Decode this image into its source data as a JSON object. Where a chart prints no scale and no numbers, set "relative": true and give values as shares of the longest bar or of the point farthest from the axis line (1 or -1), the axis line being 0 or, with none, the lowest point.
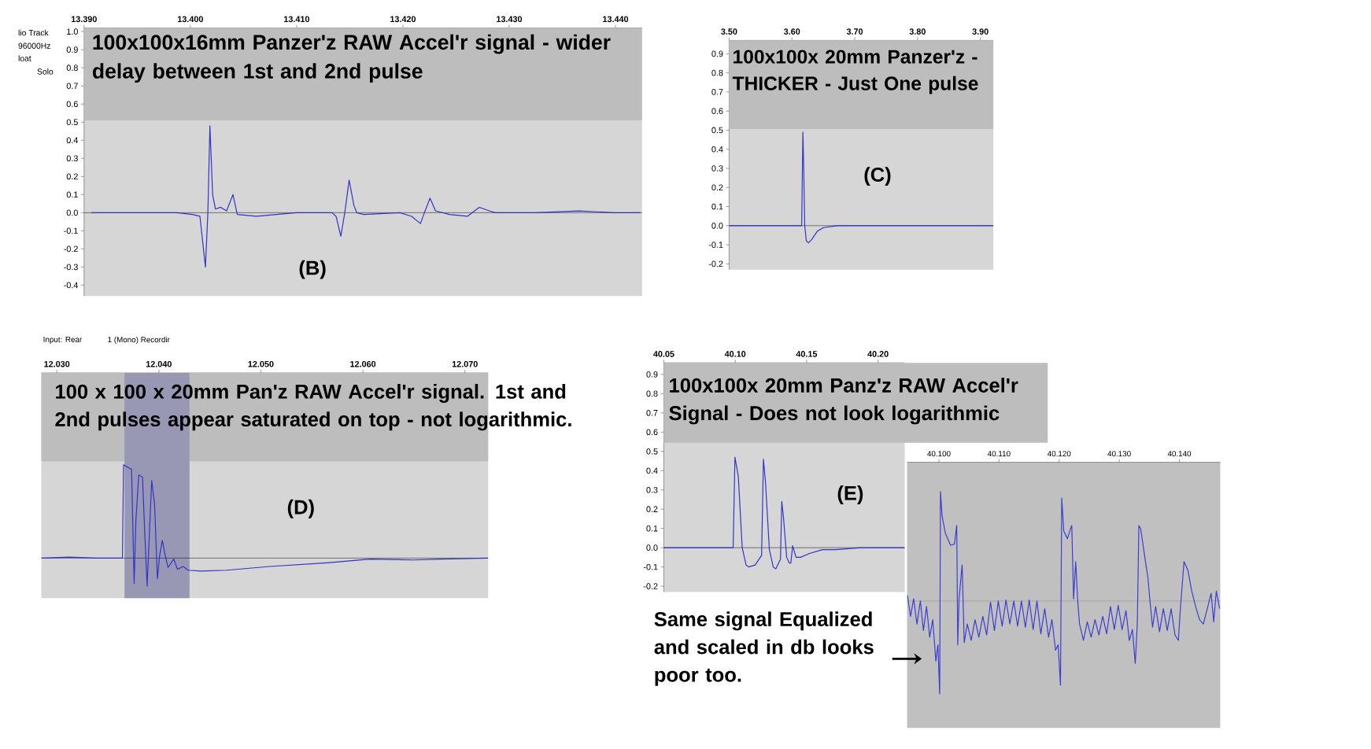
{
  "chart_data": [
    {
      "type": "line",
      "title": "100x100x16mm Panzer'z RAW Accel'r signal - wider delay between 1st and 2nd pulse",
      "color": "#3232c8",
      "x": [
        13.39067,
        13.39498,
        13.39873,
        13.40022,
        13.4009,
        13.40142,
        13.40165,
        13.40184,
        13.4021,
        13.40236,
        13.40285,
        13.40341,
        13.40401,
        13.40442,
        13.40622,
        13.40809,
        13.40996,
        13.41333,
        13.41371,
        13.41416,
        13.41453,
        13.41494,
        13.41539,
        13.41566,
        13.41633,
        13.4197,
        13.42082,
        13.42165,
        13.42202,
        13.42255,
        13.42307,
        13.42438,
        13.42607,
        13.42719,
        13.42813,
        13.42869,
        13.43243,
        13.43655,
        13.43993,
        13.44236
      ],
      "values": [
        0.0,
        0.0,
        0.0,
        -0.01,
        -0.02,
        -0.3,
        0.0,
        0.48,
        0.1,
        0.02,
        0.03,
        0.01,
        0.1,
        -0.01,
        -0.02,
        -0.01,
        0.0,
        0.0,
        -0.02,
        -0.13,
        0.0,
        0.18,
        0.04,
        0.0,
        -0.01,
        0.0,
        -0.02,
        -0.06,
        0.0,
        0.08,
        0.01,
        -0.01,
        -0.02,
        0.03,
        0.01,
        0.0,
        0.0,
        0.01,
        0.0,
        0.0
      ],
      "xlim": [
        13.39,
        13.4425
      ],
      "ylim": [
        -0.46,
        1.02
      ],
      "xticks": [
        {
          "value": 13.39,
          "label": "13.390"
        },
        {
          "value": 13.4,
          "label": "13.400"
        },
        {
          "value": 13.41,
          "label": "13.410"
        },
        {
          "value": 13.42,
          "label": "13.420"
        },
        {
          "value": 13.43,
          "label": "13.430"
        },
        {
          "value": 13.44,
          "label": "13.440"
        }
      ],
      "yticks": [
        {
          "value": -0.4,
          "label": "-0.4"
        },
        {
          "value": -0.3,
          "label": "-0.3"
        },
        {
          "value": -0.2,
          "label": "-0.2"
        },
        {
          "value": -0.1,
          "label": "-0.1"
        },
        {
          "value": 0.0,
          "label": "0.0"
        },
        {
          "value": 0.1,
          "label": "0.1"
        },
        {
          "value": 0.2,
          "label": "0.2"
        },
        {
          "value": 0.3,
          "label": "0.3"
        },
        {
          "value": 0.4,
          "label": "0.4"
        },
        {
          "value": 0.5,
          "label": "0.5"
        },
        {
          "value": 0.6,
          "label": "0.6"
        },
        {
          "value": 0.7,
          "label": "0.7"
        },
        {
          "value": 0.8,
          "label": "0.8"
        },
        {
          "value": 0.9,
          "label": "0.9"
        },
        {
          "value": 1.0,
          "label": "1.0"
        }
      ],
      "ref_lines": [
        {
          "axis": "y",
          "value": 0,
          "color": "#000000"
        }
      ],
      "annotations": [
        "(B)",
        "lio Track",
        "96000Hz",
        "loat",
        "Solo"
      ]
    },
    {
      "type": "line",
      "title": "100x100x 20mm Panzer'z - THICKER - Just One pulse",
      "color": "#3232c8",
      "x": [
        3.5,
        3.5495,
        3.5907,
        3.6155,
        3.6175,
        3.6188,
        3.6204,
        3.6229,
        3.6266,
        3.632,
        3.6402,
        3.6505,
        3.6732,
        3.7144,
        3.7557,
        3.8381,
        3.9206
      ],
      "values": [
        0.0,
        0.0,
        0.0,
        0.0,
        0.49,
        0.3,
        0.0,
        -0.08,
        -0.09,
        -0.07,
        -0.03,
        -0.01,
        0.0,
        0.0,
        0.0,
        0.0,
        0.0
      ],
      "xlim": [
        3.5,
        3.9206
      ],
      "ylim": [
        -0.23,
        0.97
      ],
      "xticks": [
        {
          "value": 3.5,
          "label": "3.50"
        },
        {
          "value": 3.6,
          "label": "3.60"
        },
        {
          "value": 3.7,
          "label": "3.70"
        },
        {
          "value": 3.8,
          "label": "3.80"
        },
        {
          "value": 3.9,
          "label": "3.90"
        }
      ],
      "yticks": [
        {
          "value": -0.2,
          "label": "-0.2"
        },
        {
          "value": -0.1,
          "label": "-0.1"
        },
        {
          "value": 0.0,
          "label": "0.0"
        },
        {
          "value": 0.1,
          "label": "0.1"
        },
        {
          "value": 0.2,
          "label": "0.2"
        },
        {
          "value": 0.3,
          "label": "0.3"
        },
        {
          "value": 0.4,
          "label": "0.4"
        },
        {
          "value": 0.5,
          "label": "0.5"
        },
        {
          "value": 0.6,
          "label": "0.6"
        },
        {
          "value": 0.7,
          "label": "0.7"
        },
        {
          "value": 0.8,
          "label": "0.8"
        },
        {
          "value": 0.9,
          "label": "0.9"
        }
      ],
      "ref_lines": [
        {
          "axis": "y",
          "value": 0,
          "color": "#000000"
        }
      ],
      "annotations": [
        "(C)"
      ]
    },
    {
      "type": "line",
      "title": "100 x 100 x 20mm Pan'z RAW Accel'r signal. 1st and 2nd pulses appear saturated on top - not logarithmic.",
      "color": "#3232c8",
      "relative": true,
      "x": [
        12.02848,
        12.03121,
        12.03402,
        12.03643,
        12.03654,
        12.03733,
        12.03744,
        12.03758,
        12.03775,
        12.03803,
        12.0384,
        12.03857,
        12.03885,
        12.03907,
        12.0393,
        12.03958,
        12.03986,
        12.04008,
        12.04034,
        12.04062,
        12.0409,
        12.04146,
        12.04183,
        12.04239,
        12.04287,
        12.04413,
        12.04666,
        12.05087,
        12.05649,
        12.0607,
        12.06492,
        12.06772,
        12.07228
      ],
      "values": [
        0.0,
        0.01,
        0.0,
        0.0,
        1.0,
        0.95,
        0.4,
        -0.27,
        0.4,
        0.89,
        0.87,
        0.4,
        -0.3,
        0.25,
        0.83,
        0.58,
        -0.22,
        0.03,
        0.19,
        0.03,
        -0.1,
        -0.01,
        -0.12,
        -0.09,
        -0.13,
        -0.14,
        -0.13,
        -0.09,
        -0.05,
        -0.01,
        -0.02,
        -0.01,
        0.0
      ],
      "xlim": [
        12.02848,
        12.07228
      ],
      "xticks": [
        {
          "value": 12.03,
          "label": "12.030"
        },
        {
          "value": 12.04,
          "label": "12.040"
        },
        {
          "value": 12.05,
          "label": "12.050"
        },
        {
          "value": 12.06,
          "label": "12.060"
        },
        {
          "value": 12.07,
          "label": "12.070"
        }
      ],
      "bands": [
        {
          "axis": "x",
          "from": 12.03663,
          "to": 12.04301,
          "color": "#9898b4"
        }
      ],
      "ref_lines": [
        {
          "axis": "y",
          "value": 0,
          "color": "#000000"
        }
      ],
      "annotations": [
        "(D)",
        "Input: Rear",
        "1 (Mono) Recordir"
      ]
    },
    {
      "type": "line",
      "title": "100x100x 20mm Panz'z RAW Accel'r Signal - Does not look logarithmic",
      "color": "#3232c8",
      "x": [
        40.05,
        40.07047,
        40.09855,
        40.09982,
        40.10217,
        40.10489,
        40.10761,
        40.10942,
        40.11395,
        40.11848,
        40.11975,
        40.1212,
        40.12391,
        40.12663,
        40.12844,
        40.1317,
        40.13261,
        40.13388,
        40.13605,
        40.13786,
        40.13895,
        40.14022,
        40.14257,
        40.14565,
        40.15199,
        40.16105,
        40.17011,
        40.18822,
        40.20634,
        40.21866
      ],
      "values": [
        0.0,
        0.0,
        0.0,
        0.47,
        0.37,
        0.0,
        -0.09,
        -0.1,
        -0.09,
        -0.04,
        0.46,
        0.34,
        -0.01,
        -0.1,
        -0.11,
        -0.06,
        0.24,
        0.15,
        -0.05,
        -0.08,
        -0.08,
        0.01,
        -0.05,
        -0.05,
        -0.03,
        -0.01,
        -0.01,
        0.0,
        0.0,
        0.0
      ],
      "xlim": [
        40.05,
        40.2187
      ],
      "ylim": [
        -0.23,
        0.96
      ],
      "xticks": [
        {
          "value": 40.05,
          "label": "40.05"
        },
        {
          "value": 40.1,
          "label": "40.10"
        },
        {
          "value": 40.15,
          "label": "40.15"
        },
        {
          "value": 40.2,
          "label": "40.20"
        }
      ],
      "yticks": [
        {
          "value": -0.2,
          "label": "-0.2"
        },
        {
          "value": -0.1,
          "label": "-0.1"
        },
        {
          "value": 0.0,
          "label": "0.0"
        },
        {
          "value": 0.1,
          "label": "0.1"
        },
        {
          "value": 0.2,
          "label": "0.2"
        },
        {
          "value": 0.3,
          "label": "0.3"
        },
        {
          "value": 0.4,
          "label": "0.4"
        },
        {
          "value": 0.5,
          "label": "0.5"
        },
        {
          "value": 0.6,
          "label": "0.6"
        },
        {
          "value": 0.7,
          "label": "0.7"
        },
        {
          "value": 0.8,
          "label": "0.8"
        },
        {
          "value": 0.9,
          "label": "0.9"
        }
      ],
      "ref_lines": [
        {
          "axis": "y",
          "value": 0,
          "color": "#000000"
        }
      ],
      "annotations": [
        "(E)"
      ]
    },
    {
      "type": "line",
      "color": "#3c3cd2",
      "relative": true,
      "x": [
        40.09476,
        40.09528,
        40.09579,
        40.09635,
        40.09691,
        40.09742,
        40.09794,
        40.09846,
        40.09897,
        40.09949,
        40.09983,
        40.10013,
        40.10026,
        40.10052,
        40.10107,
        40.10193,
        40.10258,
        40.10296,
        40.10313,
        40.10335,
        40.10386,
        40.10421,
        40.10472,
        40.10537,
        40.10601,
        40.10665,
        40.1073,
        40.10794,
        40.10858,
        40.10923,
        40.10987,
        40.11052,
        40.11116,
        40.1118,
        40.11245,
        40.11309,
        40.11373,
        40.11438,
        40.11502,
        40.11567,
        40.11631,
        40.11695,
        40.1176,
        40.11824,
        40.1188,
        40.1194,
        40.11983,
        40.12022,
        40.12043,
        40.12077,
        40.12137,
        40.12189,
        40.1221,
        40.1224,
        40.12275,
        40.12309,
        40.12339,
        40.12404,
        40.12468,
        40.12532,
        40.12597,
        40.12661,
        40.12725,
        40.1279,
        40.12854,
        40.12918,
        40.12983,
        40.13047,
        40.13112,
        40.13167,
        40.13219,
        40.13266,
        40.133,
        40.13326,
        40.13356,
        40.13412,
        40.13477,
        40.13511,
        40.13554,
        40.13605,
        40.1367,
        40.13734,
        40.13798,
        40.13863,
        40.13927,
        40.13983,
        40.14017,
        40.14077,
        40.14142,
        40.14206,
        40.1427,
        40.14335,
        40.14399,
        40.14464,
        40.14528,
        40.14571,
        40.14614,
        40.1467
      ],
      "values": [
        0.05,
        -0.14,
        0.02,
        -0.21,
        0.0,
        -0.27,
        -0.05,
        -0.33,
        -0.17,
        -0.55,
        -0.4,
        -0.85,
        1.0,
        0.78,
        0.62,
        0.51,
        0.52,
        0.69,
        -0.4,
        0.02,
        0.33,
        -0.38,
        -0.21,
        -0.36,
        -0.17,
        -0.33,
        -0.14,
        -0.31,
        -0.01,
        -0.27,
        0.0,
        -0.23,
        0.01,
        -0.21,
        0.0,
        -0.23,
        0.0,
        -0.24,
        0.01,
        -0.26,
        0.0,
        -0.3,
        -0.07,
        -0.33,
        -0.17,
        -0.45,
        -0.4,
        -0.77,
        0.94,
        0.64,
        0.57,
        0.66,
        0.69,
        0.02,
        0.36,
        0.0,
        -0.21,
        -0.36,
        -0.19,
        -0.33,
        -0.17,
        -0.31,
        -0.14,
        -0.3,
        -0.05,
        -0.26,
        -0.04,
        -0.26,
        -0.09,
        -0.36,
        -0.26,
        -0.57,
        -0.21,
        0.69,
        0.66,
        0.45,
        0.21,
        0.0,
        -0.24,
        -0.05,
        -0.28,
        -0.07,
        -0.27,
        -0.07,
        -0.31,
        -0.36,
        -0.07,
        0.36,
        0.28,
        0.09,
        -0.05,
        -0.17,
        -0.21,
        -0.07,
        0.07,
        -0.19,
        0.09,
        -0.07
      ],
      "xlim": [
        40.0947,
        40.1468
      ],
      "xticks": [
        {
          "value": 40.1,
          "label": "40.100"
        },
        {
          "value": 40.11,
          "label": "40.110"
        },
        {
          "value": 40.12,
          "label": "40.120"
        },
        {
          "value": 40.13,
          "label": "40.130"
        },
        {
          "value": 40.14,
          "label": "40.140"
        }
      ],
      "ref_lines": [
        {
          "axis": "y",
          "value": 0,
          "color": "#8c8c8c"
        }
      ],
      "annotations": [
        "Same signal Equalized and scaled in db looks poor too."
      ]
    }
  ]
}
